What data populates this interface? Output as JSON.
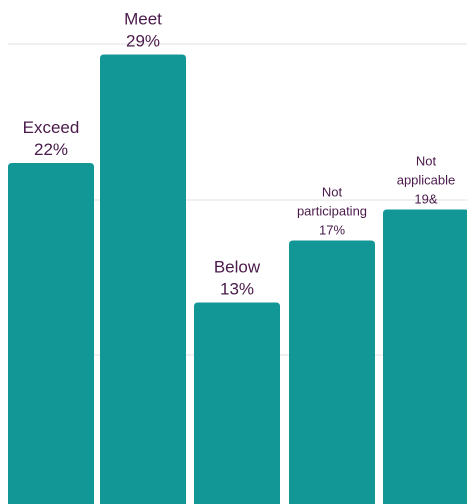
{
  "chart_data": {
    "type": "bar",
    "title": "",
    "xlabel": "",
    "ylabel": "",
    "ylim": [
      0,
      32
    ],
    "grid": true,
    "bar_color": "#139696",
    "label_color": "#4a1a4a",
    "grid_color": "#e0e0e0",
    "categories": [
      "Exceed",
      "Meet",
      "Below",
      "Not participating",
      "Not applicable"
    ],
    "values": [
      22,
      29,
      13,
      17,
      19
    ],
    "data_labels": [
      [
        "Exceed",
        "22%"
      ],
      [
        "Meet",
        "29%"
      ],
      [
        "Below",
        "13%"
      ],
      [
        "Not",
        "participating",
        "17%"
      ],
      [
        "Not",
        "applicable",
        "19&"
      ]
    ]
  }
}
